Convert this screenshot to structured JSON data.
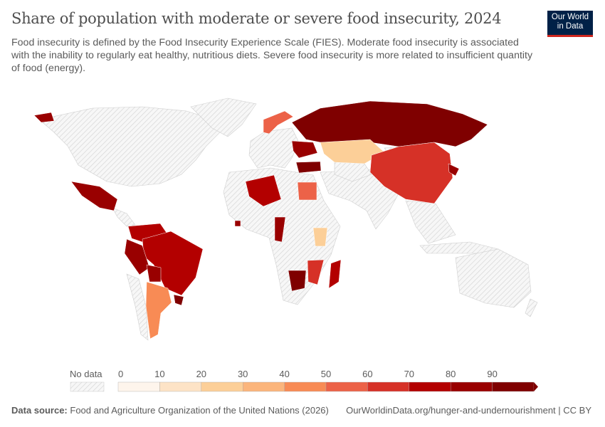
{
  "header": {
    "title": "Share of population with moderate or severe food insecurity, 2024",
    "subtitle": "Food insecurity is defined by the Food Insecurity Experience Scale (FIES). Moderate food insecurity is associated with the inability to regularly eat healthy, nutritious diets. Severe food insecurity is more related to insufficient quantity of food (energy).",
    "logo": "Our World in Data"
  },
  "chart_data": {
    "type": "choropleth",
    "title": "Share of population with moderate or severe food insecurity, 2024",
    "legend": {
      "no_data_label": "No data",
      "ticks": [
        "0",
        "10",
        "20",
        "30",
        "40",
        "50",
        "60",
        "70",
        "80",
        "90"
      ],
      "bins": [
        0,
        10,
        20,
        30,
        40,
        50,
        60,
        70,
        80,
        90,
        100
      ],
      "colors": [
        "#fef5ec",
        "#fde3c6",
        "#fccf98",
        "#fbb57c",
        "#f88b55",
        "#ec6248",
        "#d63127",
        "#b30000",
        "#990000",
        "#7f0000"
      ],
      "no_data_color": "#e8e8e8"
    },
    "values": {
      "Alaska": 85,
      "Mexico": 85,
      "Colombia-Venezuela": 75,
      "Brazil": 75,
      "Peru": 85,
      "Bolivia": 85,
      "Argentina": 45,
      "Uruguay": 95,
      "Norway-Sweden": 55,
      "Ukraine-Belarus": 85,
      "Turkey": 95,
      "Russia": 95,
      "Kazakhstan": 25,
      "China": 65,
      "Korea": 85,
      "Algeria": 75,
      "Egypt": 55,
      "Kenya": 25,
      "Mozambique": 65,
      "Zimbabwe": 95,
      "Madagascar": 75,
      "West-Africa": 85,
      "Senegal": 85
    }
  },
  "footer": {
    "source_label": "Data source:",
    "source": "Food and Agriculture Organization of the United Nations (2026)",
    "url": "OurWorldinData.org/hunger-and-undernourishment | CC BY"
  }
}
